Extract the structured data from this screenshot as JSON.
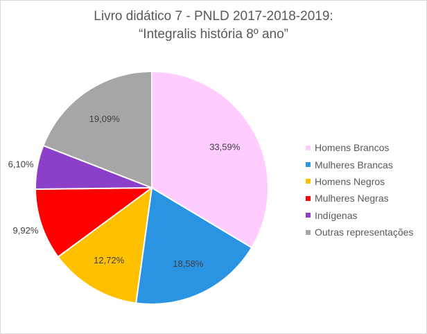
{
  "chart_data": {
    "type": "pie",
    "title": "Livro didático 7 - PNLD 2017-2018-2019:",
    "subtitle": "“Integralis história 8º ano”",
    "categories": [
      "Homens Brancos",
      "Mulheres Brancas",
      "Homens Negros",
      "Mulheres Negras",
      "Indígenas",
      "Outras representações"
    ],
    "values": [
      33.59,
      18.58,
      12.72,
      9.92,
      6.1,
      19.09
    ],
    "labels": [
      "33,59%",
      "18,58%",
      "12,72%",
      "9,92%",
      "6,10%",
      "19,09%"
    ],
    "colors": [
      "#ffccff",
      "#2a94e2",
      "#ffc000",
      "#ff0000",
      "#8c3fc8",
      "#a6a6a6"
    ],
    "legend_position": "right"
  }
}
